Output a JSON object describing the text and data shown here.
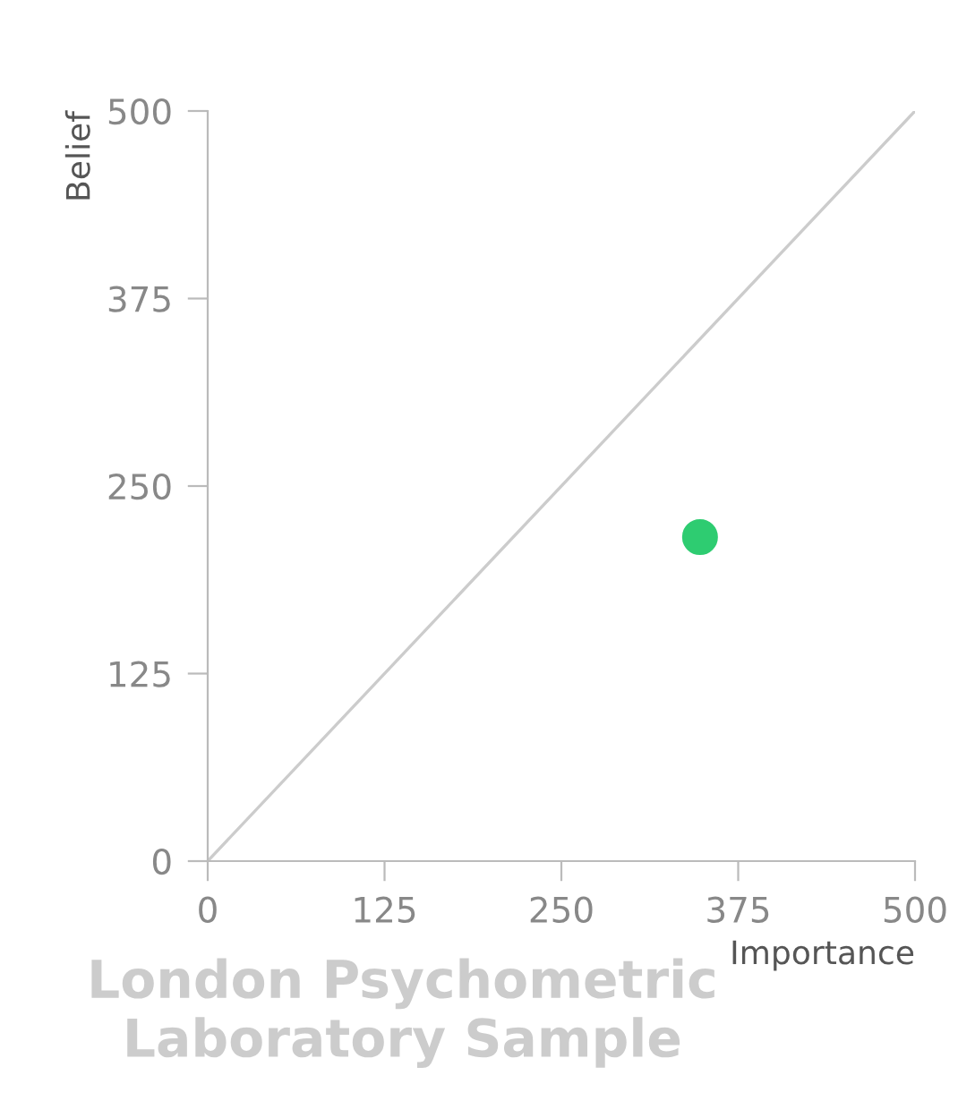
{
  "chart_data": {
    "type": "scatter",
    "xlabel": "Importance",
    "ylabel": "Belief",
    "annotations": [
      "London Psychometric Laboratory Sample"
    ],
    "series": [
      {
        "color": "#2ecc71",
        "x": [
          348
        ],
        "values": [
          216
        ],
        "marker": "circle"
      },
      {
        "type": "line",
        "color": "#cccccc",
        "x": [
          0,
          500
        ],
        "values": [
          0,
          500
        ],
        "marker": "none",
        "line_style": "solid"
      }
    ],
    "xlim": [
      0,
      500
    ],
    "ylim": [
      0,
      500
    ],
    "xticks": [
      0,
      125,
      250,
      375,
      500
    ],
    "yticks": [
      0,
      125,
      250,
      375,
      500
    ],
    "grid": false,
    "legend": false
  }
}
